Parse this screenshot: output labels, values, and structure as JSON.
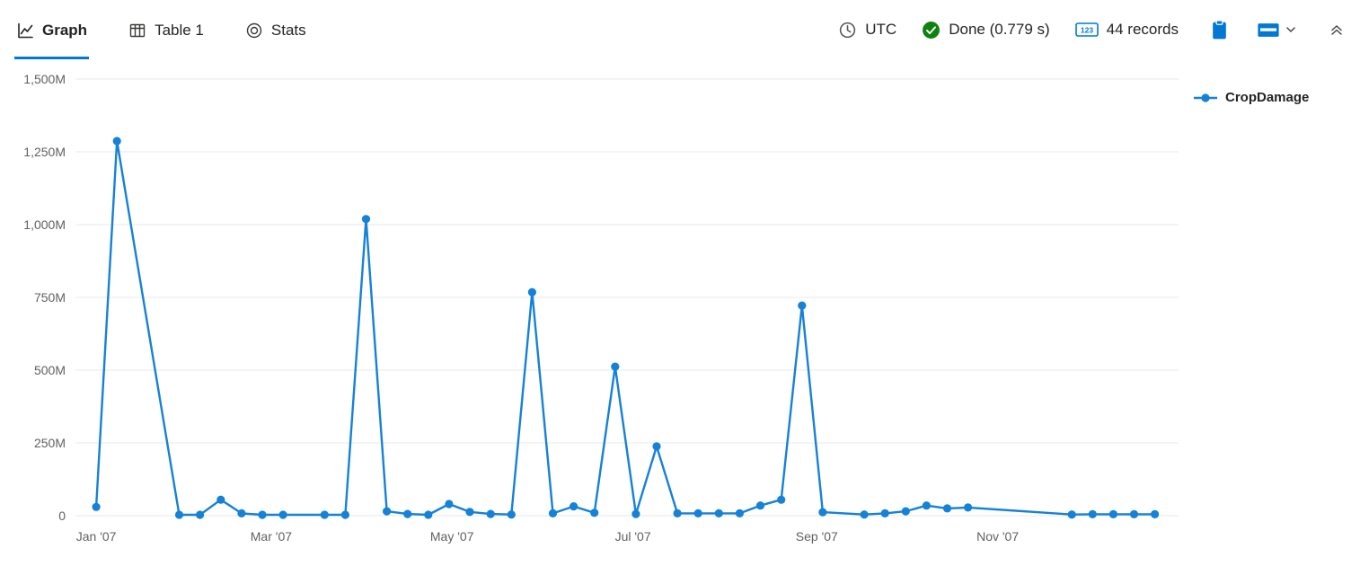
{
  "toolbar": {
    "tabs": [
      {
        "label": "Graph",
        "active": true,
        "icon": "line-chart-icon"
      },
      {
        "label": "Table 1",
        "active": false,
        "icon": "table-icon"
      },
      {
        "label": "Stats",
        "active": false,
        "icon": "stats-target-icon"
      }
    ],
    "timezone": "UTC",
    "status_text": "Done (0.779 s)",
    "record_count": "44 records",
    "icons": [
      "clock-icon",
      "check-circle-icon",
      "number-123-icon",
      "clipboard-icon",
      "layout-view-icon",
      "chevron-down-icon",
      "double-chevron-up-icon"
    ],
    "colors": {
      "accent": "#0078d4",
      "success": "#0e8210",
      "active_tab_underline": "#0078d4"
    }
  },
  "legend": {
    "series_label": "CropDamage"
  },
  "chart_data": {
    "type": "line",
    "title": "",
    "xlabel": "",
    "ylabel": "",
    "x_type": "time",
    "grid": "horizontal",
    "legend_position": "right",
    "y_unit": "millions",
    "xlim": [
      "2006-12-25",
      "2008-01-01"
    ],
    "ylim_millions": [
      0,
      1500
    ],
    "yticks": [
      {
        "value": 0,
        "label": "0"
      },
      {
        "value": 250,
        "label": "250M"
      },
      {
        "value": 500,
        "label": "500M"
      },
      {
        "value": 750,
        "label": "750M"
      },
      {
        "value": 1000,
        "label": "1,000M"
      },
      {
        "value": 1250,
        "label": "1,250M"
      },
      {
        "value": 1500,
        "label": "1,500M"
      }
    ],
    "xticks": [
      {
        "value": "2007-01-01",
        "label": "Jan '07"
      },
      {
        "value": "2007-03-01",
        "label": "Mar '07"
      },
      {
        "value": "2007-05-01",
        "label": "May '07"
      },
      {
        "value": "2007-07-01",
        "label": "Jul '07"
      },
      {
        "value": "2007-09-01",
        "label": "Sep '07"
      },
      {
        "value": "2007-11-01",
        "label": "Nov '07"
      }
    ],
    "series": [
      {
        "name": "CropDamage",
        "color": "#1581d7",
        "points": [
          {
            "x": "2007-01-01",
            "y": 30
          },
          {
            "x": "2007-01-08",
            "y": 1287
          },
          {
            "x": "2007-01-29",
            "y": 3
          },
          {
            "x": "2007-02-05",
            "y": 3
          },
          {
            "x": "2007-02-12",
            "y": 55
          },
          {
            "x": "2007-02-19",
            "y": 8
          },
          {
            "x": "2007-02-26",
            "y": 3
          },
          {
            "x": "2007-03-05",
            "y": 3
          },
          {
            "x": "2007-03-19",
            "y": 3
          },
          {
            "x": "2007-03-26",
            "y": 3
          },
          {
            "x": "2007-04-02",
            "y": 1019
          },
          {
            "x": "2007-04-09",
            "y": 15
          },
          {
            "x": "2007-04-16",
            "y": 6
          },
          {
            "x": "2007-04-23",
            "y": 3
          },
          {
            "x": "2007-04-30",
            "y": 40
          },
          {
            "x": "2007-05-07",
            "y": 13
          },
          {
            "x": "2007-05-14",
            "y": 6
          },
          {
            "x": "2007-05-21",
            "y": 4
          },
          {
            "x": "2007-05-28",
            "y": 768
          },
          {
            "x": "2007-06-04",
            "y": 8
          },
          {
            "x": "2007-06-11",
            "y": 32
          },
          {
            "x": "2007-06-18",
            "y": 10
          },
          {
            "x": "2007-06-25",
            "y": 512
          },
          {
            "x": "2007-07-02",
            "y": 6
          },
          {
            "x": "2007-07-09",
            "y": 238
          },
          {
            "x": "2007-07-16",
            "y": 8
          },
          {
            "x": "2007-07-23",
            "y": 8
          },
          {
            "x": "2007-07-30",
            "y": 8
          },
          {
            "x": "2007-08-06",
            "y": 8
          },
          {
            "x": "2007-08-13",
            "y": 35
          },
          {
            "x": "2007-08-20",
            "y": 55
          },
          {
            "x": "2007-08-27",
            "y": 722
          },
          {
            "x": "2007-09-03",
            "y": 12
          },
          {
            "x": "2007-09-17",
            "y": 4
          },
          {
            "x": "2007-09-24",
            "y": 8
          },
          {
            "x": "2007-10-01",
            "y": 15
          },
          {
            "x": "2007-10-08",
            "y": 35
          },
          {
            "x": "2007-10-15",
            "y": 25
          },
          {
            "x": "2007-10-22",
            "y": 28
          },
          {
            "x": "2007-11-26",
            "y": 4
          },
          {
            "x": "2007-12-03",
            "y": 5
          },
          {
            "x": "2007-12-10",
            "y": 5
          },
          {
            "x": "2007-12-17",
            "y": 5
          },
          {
            "x": "2007-12-24",
            "y": 5
          }
        ]
      }
    ]
  }
}
